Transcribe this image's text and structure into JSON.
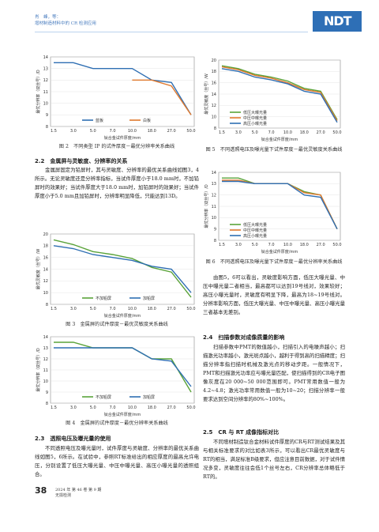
{
  "header": {
    "authors": "肖　峰，等：",
    "title": "增材制造材料中的 CR 检测应用",
    "logo": "NDT"
  },
  "figures": [
    {
      "id": "fig2",
      "caption": "图 2　不同类型 IP 的试件厚度－最优分辨率关系曲线"
    },
    {
      "id": "fig3",
      "caption": "图 3　金属屏的试件厚度－最优灵敏度关系曲线"
    },
    {
      "id": "fig4",
      "caption": "图 4　金属屏的试件厚度－最优分辨率关系曲线"
    },
    {
      "id": "fig5",
      "caption": "图 5　不同透照电压及曝光量下试件厚度－最优灵敏度关系曲线"
    },
    {
      "id": "fig6",
      "caption": "图 6　不同透照电压及曝光量下试件厚度－最优分辨率关系曲线"
    }
  ],
  "sections": {
    "s22": {
      "heading": "2.2　金属屏与灵敏度、分辨率的关系",
      "para": "金属屏固定为铅屏时，其与灵敏度、分辨率的最优关系曲线如图3，4所示。无论灵敏度还是分辨率指标，当试件厚度小于18.0 mm时，不加铅屏时的效果好；当试件厚度大于18.0 mm时，加铅屏时的效果好；当试件厚度小于5.0 mm且加铅屏时，分辨率明显降低，只能达到13D。"
    },
    "s23": {
      "heading": "2.3　透照电压及曝光量的使用",
      "para": "不同透照电压及曝光量时，试件厚度与灵敏度、分辨率的最优关系曲线如图5，6所示。在试验中，参照RT标准给出的相应厚度的最高允许电压，分别设置了低压大曝光量、中压中曝光量、高压小曝光量的透照组合。"
    },
    "right_para1": "由图5，6可以看出，灵敏度影响方面，低压大曝光量、中压中曝光量二者相当，最高都可以达到19号线对，效果较好；高压小曝光量时，灵敏度有明显下降，最高为18~19号线对。分辨率影响方面，低压大曝光量、中压中曝光量、高压小曝光量三者基本无差别。",
    "s24": {
      "heading": "2.4　扫描参数对成像质量的影响",
      "para": "扫描参数中PMT的数值越小，扫描引入的电噪声越小；扫描激光功率越小，激光斑点越小，越利于得到高的扫描精度；扫描分辨率指扫描时机械及激光点的移动步距。一般情况下，PMT和扫描激光功率应与曝光量匹配，使扫描得到的CR电子图像灰度在20 000~50 000范围即可。PMT常用数值一般为4.2~4.8；激光功率常用数值一般为10~20；扫描分辨率一般要求达到空间分辨率的80%~100%。"
    },
    "s25": {
      "heading": "2.5　CR 与 RT 成像指标对比",
      "para": "不同增材制造钛合金材料试件厚度的CR与RT测试结果及其与相关标准要求的对比如表3所示，可以看出CR最优灵敏度与RT的相当，满足标准B级要求，但应注意目前数据，对于试件情况多变，灵敏度往往会低1个丝号左右，CR分辨率总体略低于RT的。"
    }
  },
  "footer": {
    "page_number": "38",
    "issue": "2024 年 第 46 卷 第 9 期",
    "journal": "无损检测"
  },
  "chart_data": [
    {
      "id": "fig2",
      "type": "line",
      "categories": [
        "1.5",
        "3.0",
        "5.0",
        "7.0",
        "10.0",
        "18.0",
        "27.0",
        "50.0"
      ],
      "ylim": [
        8,
        14
      ],
      "yticks": [
        8,
        9,
        10,
        11,
        12,
        13,
        14
      ],
      "ylabel": "最优分辨率（双丝号）/D",
      "xlabel": "钛合金试件厚度/mm",
      "series": [
        {
          "name": "蓝板",
          "color": "#2f6fb3",
          "values": [
            13.5,
            13.5,
            13,
            13,
            13,
            12,
            11.8,
            9
          ]
        },
        {
          "name": "白板",
          "color": "#e07a2f",
          "values": [
            null,
            null,
            null,
            null,
            12,
            12,
            11.5,
            9
          ]
        }
      ]
    },
    {
      "id": "fig3",
      "type": "line",
      "categories": [
        "1.5",
        "3.0",
        "5.0",
        "7.0",
        "10.0",
        "18.0",
        "27.0",
        "50.0"
      ],
      "ylim": [
        8,
        20
      ],
      "yticks": [
        8,
        10,
        12,
        14,
        16,
        18,
        20
      ],
      "ylabel": "最优灵敏度（丝号）/W",
      "xlabel": "钛合金试件厚度/mm",
      "series": [
        {
          "name": "不加铅屏",
          "color": "#5aa33a",
          "values": [
            19,
            18.2,
            17,
            16.5,
            15.8,
            14.3,
            13.5,
            9.2
          ]
        },
        {
          "name": "加铅屏",
          "color": "#2f6fb3",
          "values": [
            18,
            17.5,
            16.5,
            16,
            15.5,
            14.5,
            14,
            10
          ]
        }
      ]
    },
    {
      "id": "fig4",
      "type": "line",
      "categories": [
        "1.5",
        "3.0",
        "5.0",
        "7.0",
        "10.0",
        "18.0",
        "27.0",
        "50.0"
      ],
      "ylim": [
        8,
        14
      ],
      "yticks": [
        8,
        9,
        10,
        11,
        12,
        13,
        14
      ],
      "ylabel": "最优分辨率（双丝号）/D",
      "xlabel": "钛合金试件厚度/mm",
      "series": [
        {
          "name": "不加铅屏",
          "color": "#5aa33a",
          "values": [
            13.5,
            13.5,
            13,
            13,
            13,
            12,
            12,
            9
          ]
        },
        {
          "name": "加铅屏",
          "color": "#2f6fb3",
          "values": [
            13,
            13,
            13,
            13,
            13,
            12,
            11.8,
            9.5
          ]
        }
      ]
    },
    {
      "id": "fig5",
      "type": "line",
      "categories": [
        "1.5",
        "3.0",
        "5.0",
        "7.0",
        "10.0",
        "18.0",
        "27.0",
        "50.0"
      ],
      "ylim": [
        8,
        20
      ],
      "yticks": [
        8,
        10,
        12,
        14,
        16,
        18,
        20
      ],
      "ylabel": "最优灵敏度（丝号）/W",
      "xlabel": "钛合金试件厚度/mm",
      "series": [
        {
          "name": "低压大曝光量",
          "color": "#5aa33a",
          "values": [
            19,
            18.5,
            17.5,
            17,
            16.3,
            15,
            14.5,
            9.5
          ]
        },
        {
          "name": "中压中曝光量",
          "color": "#e07a2f",
          "values": [
            18.8,
            18.3,
            17.3,
            16.8,
            16,
            14.8,
            14.3,
            9.3
          ]
        },
        {
          "name": "高压小曝光量",
          "color": "#2f6fb3",
          "values": [
            18.5,
            18,
            17,
            16.5,
            15.8,
            14.5,
            14,
            9
          ]
        }
      ]
    },
    {
      "id": "fig6",
      "type": "line",
      "categories": [
        "1.5",
        "3.0",
        "5.0",
        "7.0",
        "10.0",
        "18.0",
        "27.0",
        "50.0"
      ],
      "ylim": [
        8,
        14
      ],
      "yticks": [
        8,
        9,
        10,
        11,
        12,
        13,
        14
      ],
      "ylabel": "最优分辨率（双丝号）/D",
      "xlabel": "钛合金试件厚度/mm",
      "series": [
        {
          "name": "低压大曝光量",
          "color": "#5aa33a",
          "values": [
            13.5,
            13.5,
            13,
            13,
            13,
            12.3,
            12,
            9
          ]
        },
        {
          "name": "中压中曝光量",
          "color": "#e07a2f",
          "values": [
            13.3,
            13.3,
            13,
            13,
            13,
            12.2,
            12,
            9
          ]
        },
        {
          "name": "高压小曝光量",
          "color": "#2f6fb3",
          "values": [
            13.2,
            13.2,
            13,
            13,
            13,
            12,
            11.8,
            9
          ]
        }
      ]
    }
  ]
}
